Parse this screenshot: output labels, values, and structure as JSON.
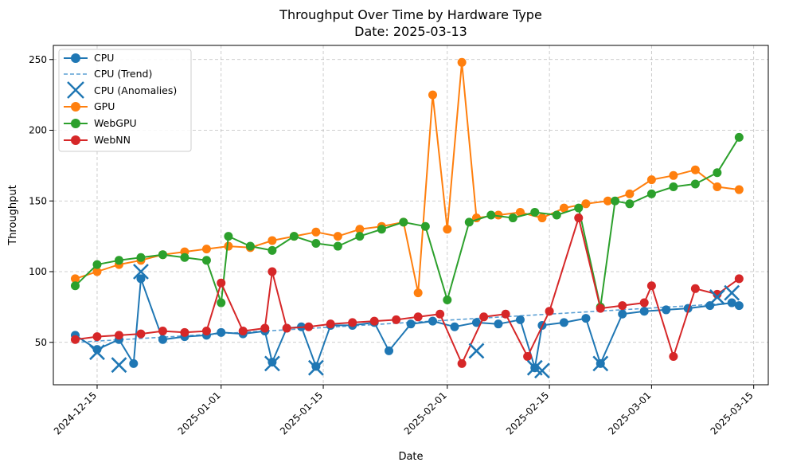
{
  "chart_data": {
    "type": "line",
    "title": "Throughput Over Time by Hardware Type",
    "subtitle": "Date: 2025-03-13",
    "xlabel": "Date",
    "ylabel": "Throughput",
    "xlim": [
      "2024-12-09",
      "2025-03-17"
    ],
    "ylim": [
      20,
      260
    ],
    "x_ticks": [
      "2024-12-15",
      "2025-01-01",
      "2025-01-15",
      "2025-02-01",
      "2025-02-15",
      "2025-03-01",
      "2025-03-15"
    ],
    "y_ticks": [
      50,
      100,
      150,
      200,
      250
    ],
    "grid": true,
    "legend_position": "upper-left",
    "legend": [
      "CPU",
      "CPU (Trend)",
      "CPU (Anomalies)",
      "GPU",
      "WebGPU",
      "WebNN"
    ],
    "colors": {
      "CPU": "#1f77b4",
      "CPU (Trend)": "#5a9fd4",
      "GPU": "#ff7f0e",
      "WebGPU": "#2ca02c",
      "WebNN": "#d62728"
    },
    "series": [
      {
        "name": "CPU",
        "x": [
          "2024-12-12",
          "2024-12-15",
          "2024-12-18",
          "2024-12-20",
          "2024-12-21",
          "2024-12-24",
          "2024-12-27",
          "2024-12-30",
          "2025-01-01",
          "2025-01-04",
          "2025-01-07",
          "2025-01-08",
          "2025-01-10",
          "2025-01-12",
          "2025-01-14",
          "2025-01-16",
          "2025-01-19",
          "2025-01-22",
          "2025-01-24",
          "2025-01-27",
          "2025-01-30",
          "2025-02-02",
          "2025-02-05",
          "2025-02-08",
          "2025-02-11",
          "2025-02-13",
          "2025-02-14",
          "2025-02-17",
          "2025-02-20",
          "2025-02-22",
          "2025-02-25",
          "2025-02-28",
          "2025-03-03",
          "2025-03-06",
          "2025-03-09",
          "2025-03-12",
          "2025-03-13"
        ],
        "y": [
          55,
          45,
          52,
          35,
          95,
          52,
          54,
          55,
          57,
          56,
          58,
          36,
          60,
          61,
          33,
          62,
          62,
          64,
          44,
          63,
          65,
          61,
          64,
          63,
          66,
          32,
          62,
          64,
          67,
          35,
          70,
          72,
          73,
          74,
          76,
          78,
          76
        ]
      },
      {
        "name": "CPU (Trend)",
        "x": [
          "2024-12-12",
          "2025-03-13"
        ],
        "y": [
          50,
          78
        ]
      },
      {
        "name": "CPU (Anomalies)",
        "x": [
          "2024-12-15",
          "2024-12-18",
          "2024-12-21",
          "2025-01-08",
          "2025-01-14",
          "2025-02-05",
          "2025-02-13",
          "2025-02-14",
          "2025-02-22",
          "2025-03-10",
          "2025-03-12"
        ],
        "y": [
          43,
          34,
          100,
          35,
          32,
          44,
          32,
          30,
          35,
          82,
          85
        ]
      },
      {
        "name": "GPU",
        "x": [
          "2024-12-12",
          "2024-12-15",
          "2024-12-18",
          "2024-12-21",
          "2024-12-24",
          "2024-12-27",
          "2024-12-30",
          "2025-01-02",
          "2025-01-05",
          "2025-01-08",
          "2025-01-11",
          "2025-01-14",
          "2025-01-17",
          "2025-01-20",
          "2025-01-23",
          "2025-01-26",
          "2025-01-28",
          "2025-01-30",
          "2025-02-01",
          "2025-02-03",
          "2025-02-05",
          "2025-02-08",
          "2025-02-11",
          "2025-02-14",
          "2025-02-17",
          "2025-02-20",
          "2025-02-23",
          "2025-02-26",
          "2025-03-01",
          "2025-03-04",
          "2025-03-07",
          "2025-03-10",
          "2025-03-13"
        ],
        "y": [
          95,
          100,
          105,
          108,
          112,
          114,
          116,
          118,
          117,
          122,
          125,
          128,
          125,
          130,
          132,
          135,
          85,
          225,
          130,
          248,
          138,
          140,
          142,
          138,
          145,
          148,
          150,
          155,
          165,
          168,
          172,
          160,
          158
        ]
      },
      {
        "name": "WebGPU",
        "x": [
          "2024-12-12",
          "2024-12-15",
          "2024-12-18",
          "2024-12-21",
          "2024-12-24",
          "2024-12-27",
          "2024-12-30",
          "2025-01-01",
          "2025-01-02",
          "2025-01-05",
          "2025-01-08",
          "2025-01-11",
          "2025-01-14",
          "2025-01-17",
          "2025-01-20",
          "2025-01-23",
          "2025-01-26",
          "2025-01-29",
          "2025-02-01",
          "2025-02-04",
          "2025-02-07",
          "2025-02-10",
          "2025-02-13",
          "2025-02-16",
          "2025-02-19",
          "2025-02-22",
          "2025-02-24",
          "2025-02-26",
          "2025-03-01",
          "2025-03-04",
          "2025-03-07",
          "2025-03-10",
          "2025-03-13"
        ],
        "y": [
          90,
          105,
          108,
          110,
          112,
          110,
          108,
          78,
          125,
          118,
          115,
          125,
          120,
          118,
          125,
          130,
          135,
          132,
          80,
          135,
          140,
          138,
          142,
          140,
          145,
          75,
          150,
          148,
          155,
          160,
          162,
          170,
          195
        ]
      },
      {
        "name": "WebNN",
        "x": [
          "2024-12-12",
          "2024-12-15",
          "2024-12-18",
          "2024-12-21",
          "2024-12-24",
          "2024-12-27",
          "2024-12-30",
          "2025-01-01",
          "2025-01-04",
          "2025-01-07",
          "2025-01-08",
          "2025-01-10",
          "2025-01-13",
          "2025-01-16",
          "2025-01-19",
          "2025-01-22",
          "2025-01-25",
          "2025-01-28",
          "2025-01-31",
          "2025-02-03",
          "2025-02-06",
          "2025-02-09",
          "2025-02-12",
          "2025-02-15",
          "2025-02-19",
          "2025-02-22",
          "2025-02-25",
          "2025-02-28",
          "2025-03-01",
          "2025-03-04",
          "2025-03-07",
          "2025-03-10",
          "2025-03-13"
        ],
        "y": [
          52,
          54,
          55,
          56,
          58,
          57,
          58,
          92,
          58,
          60,
          100,
          60,
          61,
          63,
          64,
          65,
          66,
          68,
          70,
          35,
          68,
          70,
          40,
          72,
          138,
          74,
          76,
          78,
          90,
          40,
          88,
          84,
          95
        ]
      }
    ]
  }
}
